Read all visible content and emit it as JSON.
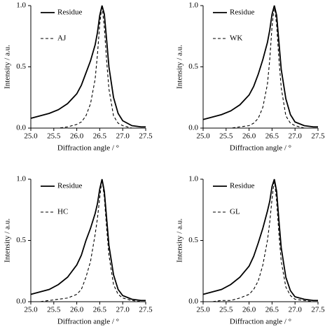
{
  "chart_data": [
    {
      "type": "line",
      "xlabel": "Diffraction angle / °",
      "ylabel": "Intensity / a.u.",
      "x": [
        25.0,
        25.2,
        25.4,
        25.6,
        25.8,
        26.0,
        26.1,
        26.2,
        26.3,
        26.4,
        26.45,
        26.5,
        26.55,
        26.6,
        26.65,
        26.7,
        26.8,
        26.9,
        27.0,
        27.2,
        27.4,
        27.5
      ],
      "series": [
        {
          "name": "Residue",
          "color": "#000000",
          "linestyle": "solid",
          "values": [
            0.08,
            0.1,
            0.12,
            0.15,
            0.2,
            0.28,
            0.35,
            0.45,
            0.55,
            0.68,
            0.78,
            0.92,
            1.0,
            0.93,
            0.72,
            0.5,
            0.25,
            0.12,
            0.06,
            0.02,
            0.01,
            0.01
          ]
        },
        {
          "name": "AJ",
          "color": "#000000",
          "linestyle": "dashed",
          "values": [
            0.0,
            0.0,
            0.0,
            0.0,
            0.01,
            0.03,
            0.05,
            0.1,
            0.2,
            0.4,
            0.6,
            0.85,
            1.0,
            0.82,
            0.55,
            0.32,
            0.1,
            0.04,
            0.02,
            0.0,
            0.0,
            0.0
          ]
        }
      ],
      "xlim": [
        25.0,
        27.5
      ],
      "ylim": [
        0.0,
        1.0
      ],
      "xticks": [
        {
          "value": 25.0,
          "label": "25.0"
        },
        {
          "value": 25.5,
          "label": "25.5"
        },
        {
          "value": 26.0,
          "label": "26.0"
        },
        {
          "value": 26.5,
          "label": "26.5"
        },
        {
          "value": 27.0,
          "label": "27.0"
        },
        {
          "value": 27.5,
          "label": "27.5"
        }
      ],
      "yticks": [
        {
          "value": 0.0,
          "label": "0.0"
        },
        {
          "value": 0.5,
          "label": "0.5"
        },
        {
          "value": 1.0,
          "label": "1.0"
        }
      ],
      "legend": "upper left"
    },
    {
      "type": "line",
      "xlabel": "Diffraction angle / °",
      "ylabel": "Intensity / a.u.",
      "x": [
        25.0,
        25.2,
        25.4,
        25.6,
        25.8,
        26.0,
        26.1,
        26.2,
        26.3,
        26.4,
        26.45,
        26.5,
        26.55,
        26.6,
        26.65,
        26.7,
        26.8,
        26.9,
        27.0,
        27.2,
        27.4,
        27.5
      ],
      "series": [
        {
          "name": "Residue",
          "color": "#000000",
          "linestyle": "solid",
          "values": [
            0.07,
            0.09,
            0.11,
            0.14,
            0.19,
            0.27,
            0.34,
            0.44,
            0.56,
            0.7,
            0.8,
            0.93,
            1.0,
            0.92,
            0.7,
            0.48,
            0.24,
            0.11,
            0.05,
            0.02,
            0.01,
            0.01
          ]
        },
        {
          "name": "WK",
          "color": "#000000",
          "linestyle": "dashed",
          "values": [
            0.0,
            0.0,
            0.0,
            0.0,
            0.01,
            0.02,
            0.04,
            0.08,
            0.17,
            0.36,
            0.56,
            0.83,
            1.0,
            0.84,
            0.56,
            0.33,
            0.1,
            0.04,
            0.02,
            0.0,
            0.0,
            0.0
          ]
        }
      ],
      "xlim": [
        25.0,
        27.5
      ],
      "ylim": [
        0.0,
        1.0
      ],
      "xticks": [
        {
          "value": 25.0,
          "label": "25.0"
        },
        {
          "value": 25.5,
          "label": "25.5"
        },
        {
          "value": 26.0,
          "label": "26.0"
        },
        {
          "value": 26.5,
          "label": "26.5"
        },
        {
          "value": 27.0,
          "label": "27.0"
        },
        {
          "value": 27.5,
          "label": "27.5"
        }
      ],
      "yticks": [
        {
          "value": 0.0,
          "label": "0.0"
        },
        {
          "value": 0.5,
          "label": "0.5"
        },
        {
          "value": 1.0,
          "label": "1.0"
        }
      ],
      "legend": "upper left"
    },
    {
      "type": "line",
      "xlabel": "Diffraction angle / °",
      "ylabel": "Intensity / a.u.",
      "x": [
        25.0,
        25.2,
        25.4,
        25.6,
        25.8,
        26.0,
        26.1,
        26.2,
        26.3,
        26.4,
        26.45,
        26.5,
        26.55,
        26.6,
        26.65,
        26.7,
        26.8,
        26.9,
        27.0,
        27.2,
        27.4,
        27.5
      ],
      "series": [
        {
          "name": "Residue",
          "color": "#000000",
          "linestyle": "solid",
          "values": [
            0.06,
            0.08,
            0.1,
            0.14,
            0.2,
            0.3,
            0.38,
            0.5,
            0.6,
            0.72,
            0.8,
            0.92,
            1.0,
            0.9,
            0.68,
            0.46,
            0.22,
            0.1,
            0.05,
            0.02,
            0.01,
            0.01
          ]
        },
        {
          "name": "HC",
          "color": "#000000",
          "linestyle": "dashed",
          "values": [
            0.0,
            0.0,
            0.01,
            0.02,
            0.03,
            0.06,
            0.1,
            0.2,
            0.33,
            0.55,
            0.68,
            0.85,
            1.0,
            0.85,
            0.6,
            0.38,
            0.14,
            0.06,
            0.03,
            0.01,
            0.0,
            0.0
          ]
        }
      ],
      "xlim": [
        25.0,
        27.5
      ],
      "ylim": [
        0.0,
        1.0
      ],
      "xticks": [
        {
          "value": 25.0,
          "label": "25.0"
        },
        {
          "value": 25.5,
          "label": "25.5"
        },
        {
          "value": 26.0,
          "label": "26.0"
        },
        {
          "value": 26.5,
          "label": "26.5"
        },
        {
          "value": 27.0,
          "label": "27.0"
        },
        {
          "value": 27.5,
          "label": "27.5"
        }
      ],
      "yticks": [
        {
          "value": 0.0,
          "label": "0.0"
        },
        {
          "value": 0.5,
          "label": "0.5"
        },
        {
          "value": 1.0,
          "label": "1.0"
        }
      ],
      "legend": "upper left"
    },
    {
      "type": "line",
      "xlabel": "Diffraction angle / °",
      "ylabel": "Intensity / a.u.",
      "x": [
        25.0,
        25.2,
        25.4,
        25.6,
        25.8,
        26.0,
        26.1,
        26.2,
        26.3,
        26.4,
        26.45,
        26.5,
        26.55,
        26.6,
        26.65,
        26.7,
        26.8,
        26.9,
        27.0,
        27.2,
        27.4,
        27.5
      ],
      "series": [
        {
          "name": "Residue",
          "color": "#000000",
          "linestyle": "solid",
          "values": [
            0.06,
            0.08,
            0.1,
            0.14,
            0.2,
            0.29,
            0.37,
            0.48,
            0.6,
            0.74,
            0.82,
            0.94,
            1.0,
            0.9,
            0.66,
            0.44,
            0.2,
            0.09,
            0.04,
            0.02,
            0.01,
            0.01
          ]
        },
        {
          "name": "GL",
          "color": "#000000",
          "linestyle": "dashed",
          "values": [
            0.0,
            0.0,
            0.01,
            0.01,
            0.03,
            0.06,
            0.1,
            0.17,
            0.3,
            0.5,
            0.65,
            0.84,
            1.0,
            0.82,
            0.55,
            0.33,
            0.12,
            0.05,
            0.02,
            0.01,
            0.0,
            0.0
          ]
        }
      ],
      "xlim": [
        25.0,
        27.5
      ],
      "ylim": [
        0.0,
        1.0
      ],
      "xticks": [
        {
          "value": 25.0,
          "label": "25.0"
        },
        {
          "value": 25.5,
          "label": "25.5"
        },
        {
          "value": 26.0,
          "label": "26.0"
        },
        {
          "value": 26.5,
          "label": "26.5"
        },
        {
          "value": 27.0,
          "label": "27.0"
        },
        {
          "value": 27.5,
          "label": "27.5"
        }
      ],
      "yticks": [
        {
          "value": 0.0,
          "label": "0.0"
        },
        {
          "value": 0.5,
          "label": "0.5"
        },
        {
          "value": 1.0,
          "label": "1.0"
        }
      ],
      "legend": "upper left"
    }
  ]
}
